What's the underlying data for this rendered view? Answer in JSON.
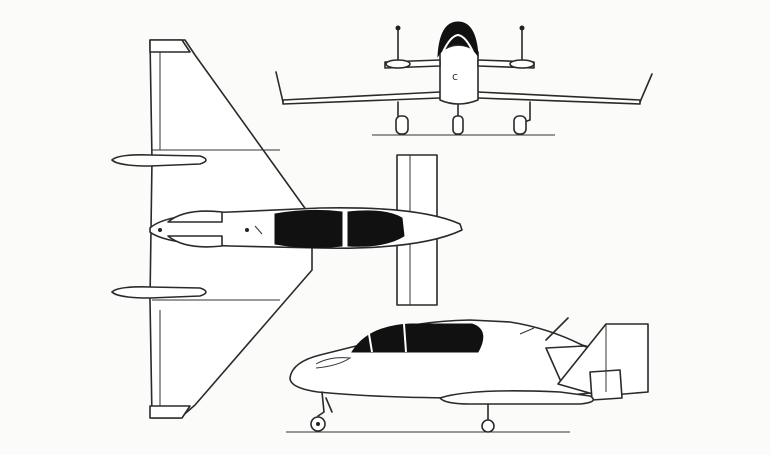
{
  "figure": {
    "views": [
      "front-view",
      "plan-view",
      "side-view"
    ],
    "colors": {
      "ink": "#2a2a2a",
      "canopy": "#111111",
      "paper": "#fbfbf9"
    }
  }
}
